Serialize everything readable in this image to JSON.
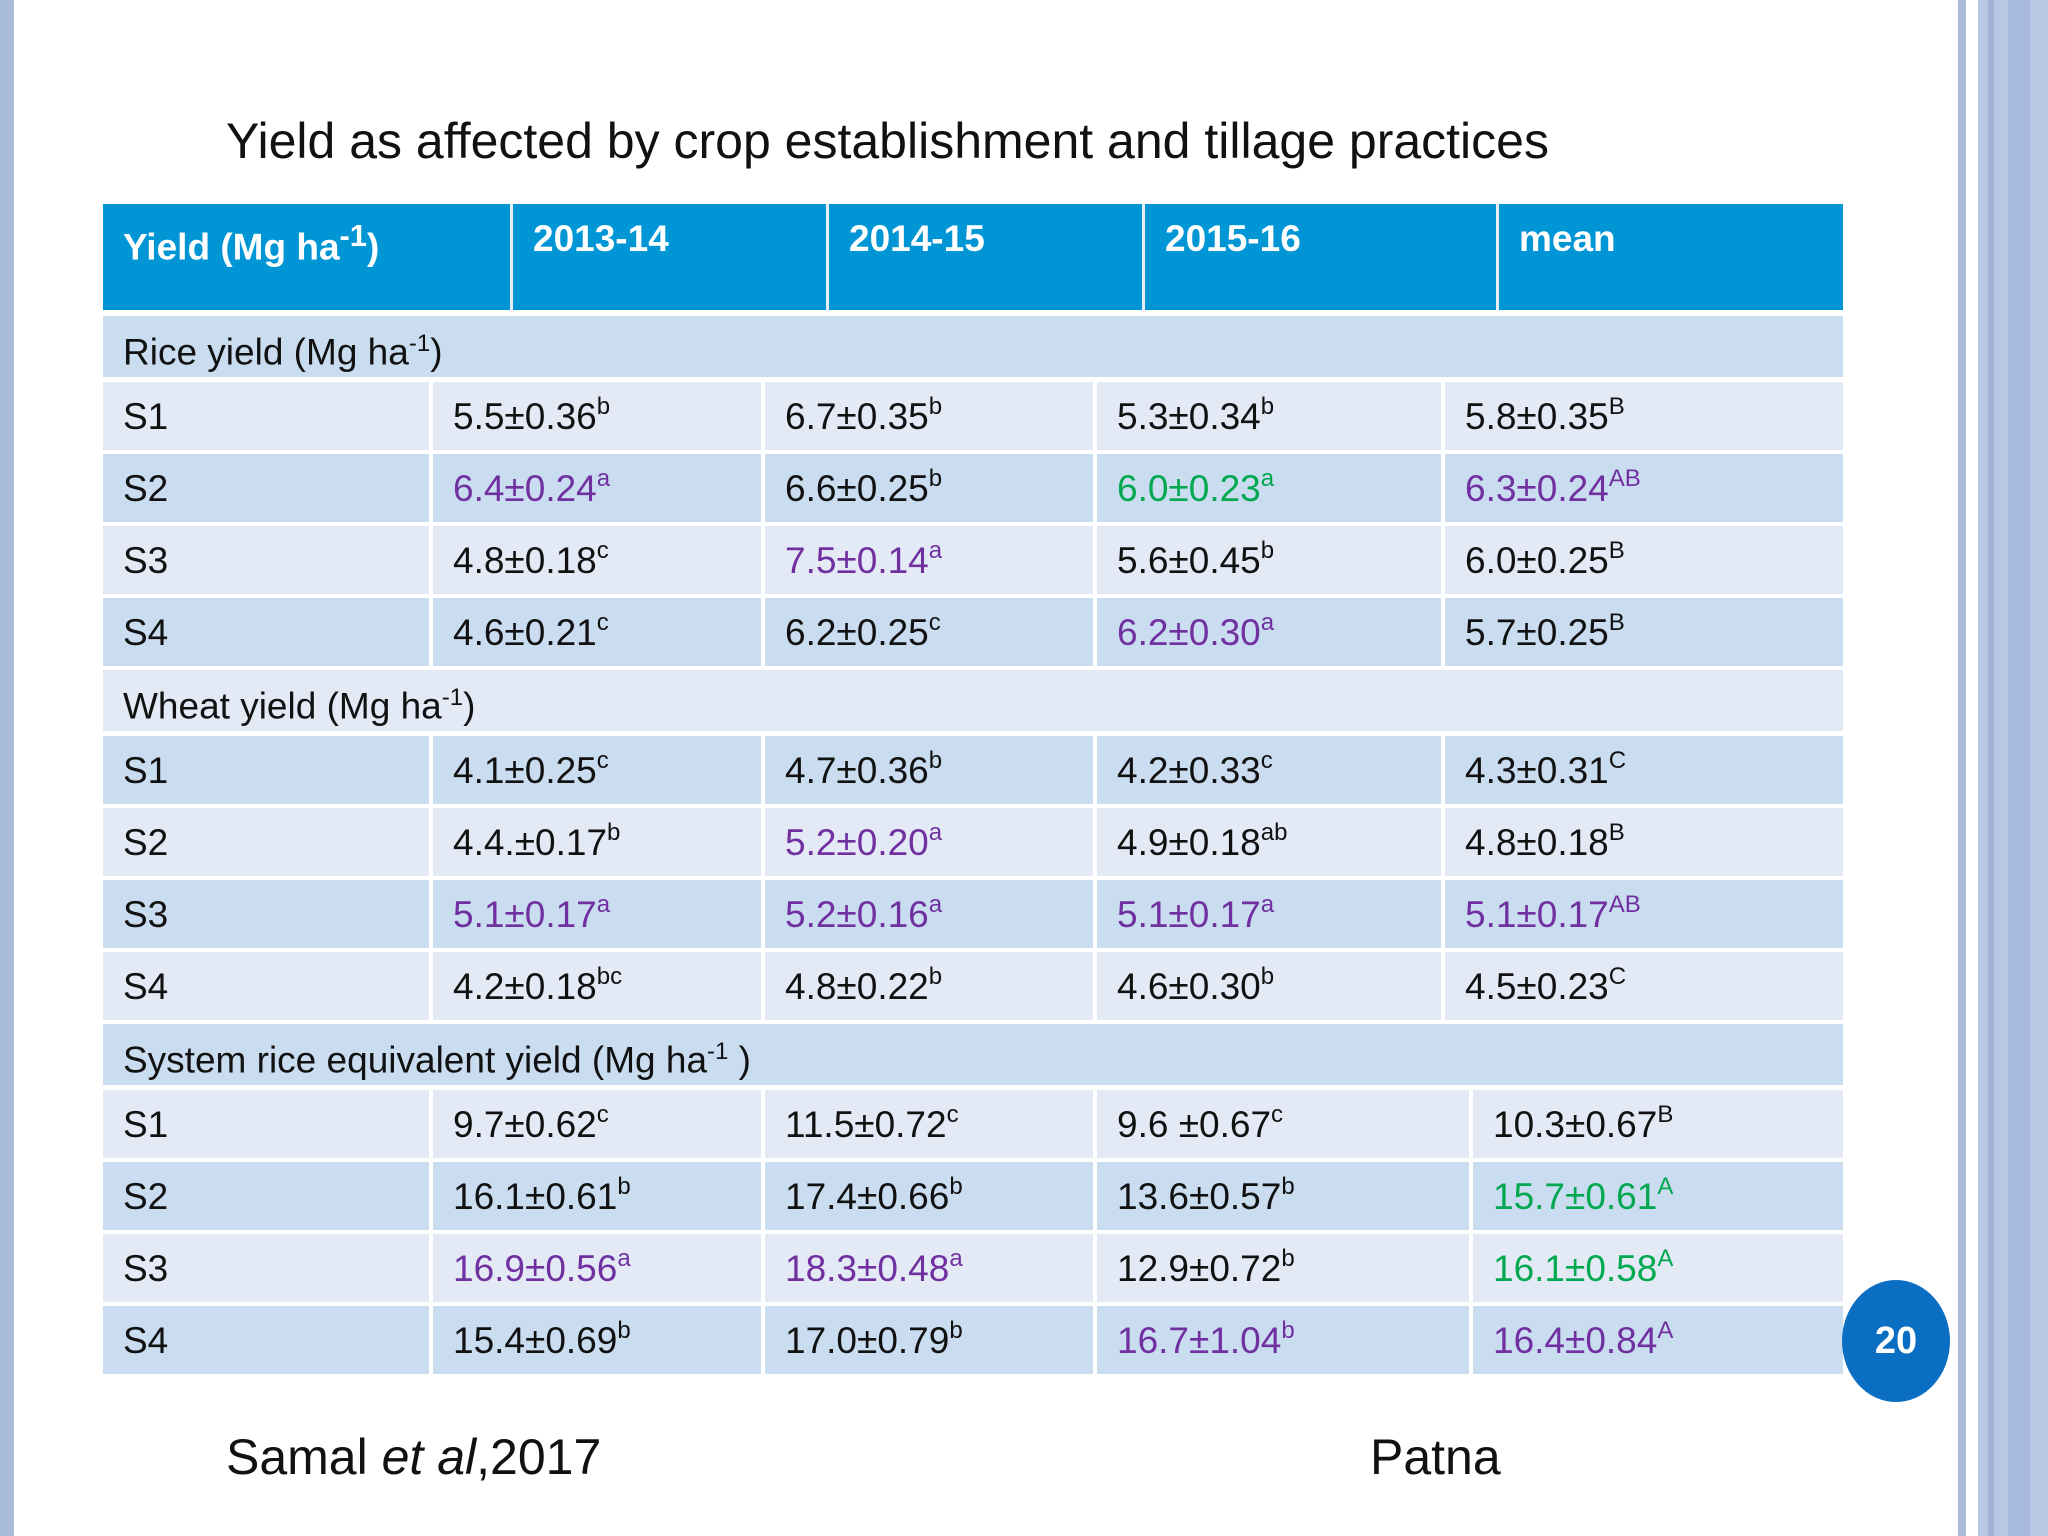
{
  "title": "Yield as affected by crop establishment and tillage practices",
  "header": [
    "Yield (Mg ha-1)",
    "2013-14",
    "2014-15",
    "2015-16",
    "mean"
  ],
  "sections": [
    {
      "label": "Rice yield (Mg ha-1)",
      "rows": [
        {
          "name": "S1",
          "cells": [
            {
              "v": "5.5±0.36",
              "s": "b"
            },
            {
              "v": "6.7±0.35",
              "s": "b"
            },
            {
              "v": "5.3±0.34",
              "s": "b"
            },
            {
              "v": "5.8±0.35",
              "s": "B"
            }
          ]
        },
        {
          "name": "S2",
          "cells": [
            {
              "v": "6.4±0.24",
              "s": "a"
            },
            {
              "v": "6.6±0.25",
              "s": "b"
            },
            {
              "v": "6.0±0.23",
              "s": "a"
            },
            {
              "v": "6.3±0.24",
              "s": "AB"
            }
          ]
        },
        {
          "name": "S3",
          "cells": [
            {
              "v": "4.8±0.18",
              "s": "c"
            },
            {
              "v": "7.5±0.14",
              "s": "a"
            },
            {
              "v": "5.6±0.45",
              "s": "b"
            },
            {
              "v": "6.0±0.25",
              "s": "B"
            }
          ]
        },
        {
          "name": "S4",
          "cells": [
            {
              "v": "4.6±0.21",
              "s": "c"
            },
            {
              "v": "6.2±0.25",
              "s": "c"
            },
            {
              "v": "6.2±0.30",
              "s": "a"
            },
            {
              "v": "5.7±0.25",
              "s": "B"
            }
          ]
        }
      ]
    },
    {
      "label": "Wheat yield (Mg ha-1)",
      "rows": [
        {
          "name": "S1",
          "cells": [
            {
              "v": "4.1±0.25",
              "s": "c"
            },
            {
              "v": "4.7±0.36",
              "s": "b"
            },
            {
              "v": "4.2±0.33",
              "s": "c"
            },
            {
              "v": "4.3±0.31",
              "s": "C"
            }
          ]
        },
        {
          "name": "S2",
          "cells": [
            {
              "v": "4.4.±0.17",
              "s": "b"
            },
            {
              "v": "5.2±0.20",
              "s": "a"
            },
            {
              "v": "4.9±0.18",
              "s": "ab"
            },
            {
              "v": "4.8±0.18",
              "s": "B"
            }
          ]
        },
        {
          "name": "S3",
          "cells": [
            {
              "v": "5.1±0.17",
              "s": "a"
            },
            {
              "v": "5.2±0.16",
              "s": "a"
            },
            {
              "v": "5.1±0.17",
              "s": "a"
            },
            {
              "v": "5.1±0.17",
              "s": "AB"
            }
          ]
        },
        {
          "name": "S4",
          "cells": [
            {
              "v": "4.2±0.18",
              "s": "bc"
            },
            {
              "v": "4.8±0.22",
              "s": "b"
            },
            {
              "v": "4.6±0.30",
              "s": "b"
            },
            {
              "v": "4.5±0.23",
              "s": "C"
            }
          ]
        }
      ]
    },
    {
      "label": "System rice equivalent yield (Mg ha-1 )",
      "rows": [
        {
          "name": "S1",
          "cells": [
            {
              "v": "9.7±0.62",
              "s": "c"
            },
            {
              "v": "11.5±0.72",
              "s": "c"
            },
            {
              "v": "9.6 ±0.67",
              "s": "c"
            },
            {
              "v": "10.3±0.67",
              "s": "B"
            }
          ]
        },
        {
          "name": "S2",
          "cells": [
            {
              "v": "16.1±0.61",
              "s": "b"
            },
            {
              "v": "17.4±0.66",
              "s": "b"
            },
            {
              "v": "13.6±0.57",
              "s": "b"
            },
            {
              "v": "15.7±0.61",
              "s": "A"
            }
          ]
        },
        {
          "name": "S3",
          "cells": [
            {
              "v": "16.9±0.56",
              "s": "a"
            },
            {
              "v": "18.3±0.48",
              "s": "a"
            },
            {
              "v": "12.9±0.72",
              "s": "b"
            },
            {
              "v": "16.1±0.58",
              "s": "A"
            }
          ]
        },
        {
          "name": "S4",
          "cells": [
            {
              "v": "15.4±0.69",
              "s": "b"
            },
            {
              "v": "17.0±0.79",
              "s": "b"
            },
            {
              "v": "16.7±1.04",
              "s": "b"
            },
            {
              "v": "16.4±0.84",
              "s": "A"
            }
          ]
        }
      ]
    }
  ],
  "colors": {
    "purple": "#7030a0",
    "green": "#00a84f",
    "header_bg": "#0096d6"
  },
  "footer": {
    "ref_author": "Samal ",
    "ref_etal": "et al",
    "ref_year": ",2017",
    "location": "Patna"
  },
  "page_number": "20"
}
